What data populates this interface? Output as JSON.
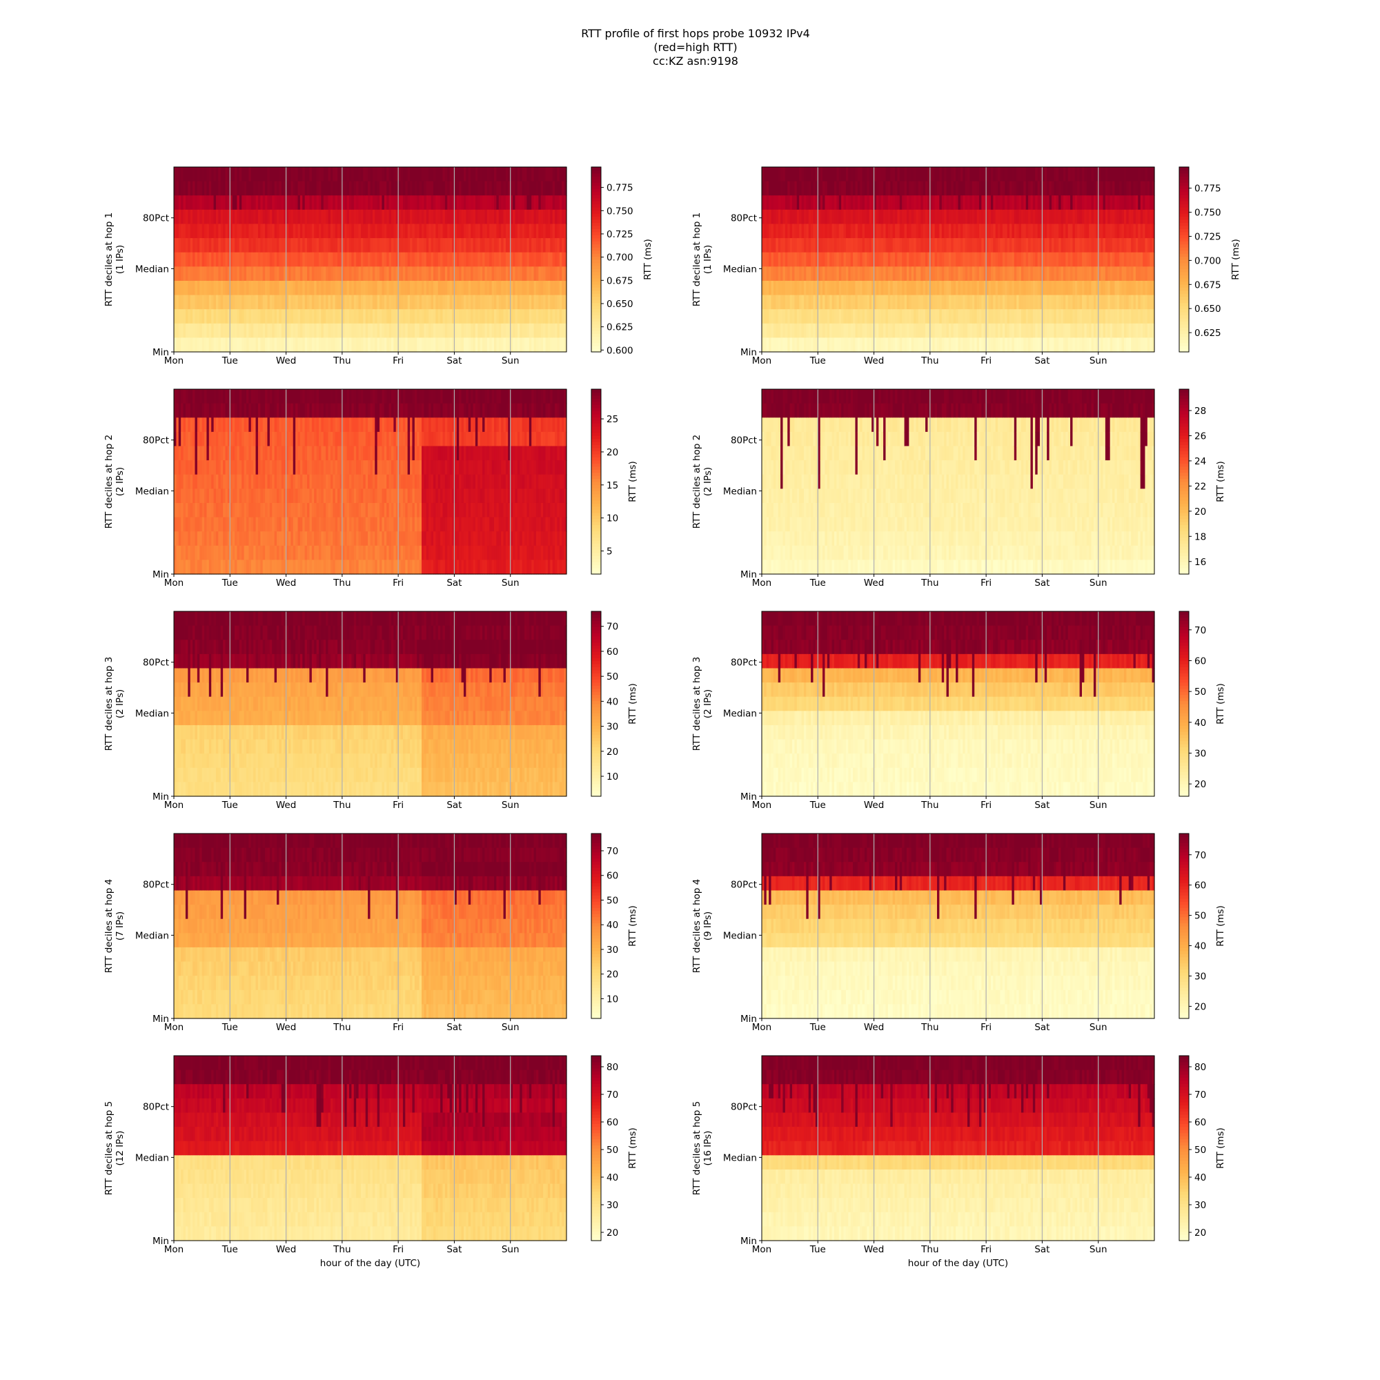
{
  "figure": {
    "title_lines": [
      "RTT profile of first hops probe 10932 IPv4",
      "(red=high RTT)",
      "cc:KZ asn:9198"
    ]
  },
  "colormap": {
    "name": "YlOrRd",
    "stops": [
      "#ffffcc",
      "#ffeda0",
      "#fed976",
      "#feb24c",
      "#fd8d3c",
      "#fc4e2a",
      "#e31a1c",
      "#bd0026",
      "#800026"
    ]
  },
  "x_ticks": [
    "Mon",
    "Tue",
    "Wed",
    "Thu",
    "Fri",
    "Sat",
    "Sun"
  ],
  "y_ticks": [
    "80Pct",
    "Median",
    "Min"
  ],
  "x_axis_label": "hour of the day (UTC)",
  "colorbar_label": "RTT (ms)",
  "chart_data": [
    {
      "type": "heatmap",
      "column": "left",
      "row": 1,
      "ylabel": "RTT deciles at hop 1",
      "ylabel_sub": "(1 IPs)",
      "color_ticks": [
        "0.600",
        "0.625",
        "0.650",
        "0.675",
        "0.700",
        "0.725",
        "0.750",
        "0.775"
      ],
      "range": [
        0.598,
        0.797
      ],
      "rows": [
        0.797,
        0.795,
        0.775,
        0.755,
        0.745,
        0.735,
        0.72,
        0.705,
        0.675,
        0.66,
        0.645,
        0.628,
        0.612
      ],
      "shift_day": null,
      "shift_delta": 0,
      "spikes": 0.3,
      "spike_depth": 1
    },
    {
      "type": "heatmap",
      "column": "right",
      "row": 1,
      "ylabel": "RTT deciles at hop 1",
      "ylabel_sub": "(1 IPs)",
      "color_ticks": [
        "0.625",
        "0.650",
        "0.675",
        "0.700",
        "0.725",
        "0.750",
        "0.775"
      ],
      "range": [
        0.605,
        0.797
      ],
      "rows": [
        0.797,
        0.795,
        0.775,
        0.755,
        0.745,
        0.735,
        0.72,
        0.705,
        0.675,
        0.66,
        0.645,
        0.632,
        0.615
      ],
      "shift_day": null,
      "shift_delta": 0,
      "spikes": 0.25,
      "spike_depth": 1
    },
    {
      "type": "heatmap",
      "column": "left",
      "row": 2,
      "ylabel": "RTT deciles at hop 2",
      "ylabel_sub": "(2 IPs)",
      "color_ticks": [
        "5",
        "10",
        "15",
        "20",
        "25"
      ],
      "range": [
        1.5,
        29.5
      ],
      "rows": [
        29.5,
        29.0,
        18.5,
        18.2,
        18.0,
        17.8,
        17.6,
        17.4,
        17.2,
        17.0,
        16.8,
        16.5,
        16.0
      ],
      "shift_day": 4.4,
      "shift_delta": 6.5,
      "spikes": 0.45,
      "spike_depth": 4
    },
    {
      "type": "heatmap",
      "column": "right",
      "row": 2,
      "ylabel": "RTT deciles at hop 2",
      "ylabel_sub": "(2 IPs)",
      "color_ticks": [
        "16",
        "18",
        "20",
        "22",
        "24",
        "26",
        "28"
      ],
      "range": [
        15.0,
        29.7
      ],
      "rows": [
        29.7,
        29.5,
        17.2,
        17.0,
        16.9,
        16.8,
        16.7,
        16.6,
        16.5,
        16.4,
        16.2,
        16.0,
        15.5
      ],
      "shift_day": null,
      "shift_delta": 0,
      "spikes": 0.4,
      "spike_depth": 5
    },
    {
      "type": "heatmap",
      "column": "left",
      "row": 3,
      "ylabel": "RTT deciles at hop 3",
      "ylabel_sub": "(2 IPs)",
      "color_ticks": [
        "10",
        "20",
        "30",
        "40",
        "50",
        "60",
        "70"
      ],
      "range": [
        2.0,
        76.0
      ],
      "rows": [
        76,
        75,
        74,
        72,
        35,
        33,
        32,
        31,
        22,
        21,
        20,
        19,
        18
      ],
      "shift_day": 4.4,
      "shift_delta": 9,
      "spikes": 0.45,
      "spike_depth": 4
    },
    {
      "type": "heatmap",
      "column": "right",
      "row": 3,
      "ylabel": "RTT deciles at hop 3",
      "ylabel_sub": "(2 IPs)",
      "color_ticks": [
        "20",
        "30",
        "40",
        "50",
        "60",
        "70"
      ],
      "range": [
        16.0,
        76.0
      ],
      "rows": [
        76,
        75,
        74,
        60,
        38,
        34,
        31,
        22,
        20,
        19,
        18.5,
        18,
        17.5
      ],
      "shift_day": null,
      "shift_delta": 0,
      "spikes": 0.5,
      "spike_depth": 4
    },
    {
      "type": "heatmap",
      "column": "left",
      "row": 4,
      "ylabel": "RTT deciles at hop 4",
      "ylabel_sub": "(7 IPs)",
      "color_ticks": [
        "10",
        "20",
        "30",
        "40",
        "50",
        "60",
        "70"
      ],
      "range": [
        2.0,
        77.0
      ],
      "rows": [
        77,
        76,
        75,
        72,
        36,
        35,
        34,
        33,
        24,
        23,
        22,
        21,
        20
      ],
      "shift_day": 4.4,
      "shift_delta": 8,
      "spikes": 0.45,
      "spike_depth": 4
    },
    {
      "type": "heatmap",
      "column": "right",
      "row": 4,
      "ylabel": "RTT deciles at hop 4",
      "ylabel_sub": "(9 IPs)",
      "color_ticks": [
        "20",
        "30",
        "40",
        "50",
        "60",
        "70"
      ],
      "range": [
        16.0,
        77.0
      ],
      "rows": [
        77,
        76,
        75,
        60,
        37,
        34,
        32,
        30,
        20,
        19,
        18.5,
        18,
        17.5
      ],
      "shift_day": null,
      "shift_delta": 0,
      "spikes": 0.5,
      "spike_depth": 4
    },
    {
      "type": "heatmap",
      "column": "left",
      "row": 5,
      "ylabel": "RTT deciles at hop 5",
      "ylabel_sub": "(12 IPs)",
      "color_ticks": [
        "20",
        "30",
        "40",
        "50",
        "60",
        "70",
        "80"
      ],
      "range": [
        17.0,
        84.0
      ],
      "rows": [
        84,
        83,
        75,
        73,
        71,
        70,
        68,
        31,
        30,
        29,
        28,
        27,
        26
      ],
      "shift_day": 4.4,
      "shift_delta": 7,
      "spikes": 0.4,
      "spike_depth": 3
    },
    {
      "type": "heatmap",
      "column": "right",
      "row": 5,
      "ylabel": "RTT deciles at hop 5",
      "ylabel_sub": "(16 IPs)",
      "color_ticks": [
        "20",
        "30",
        "40",
        "50",
        "60",
        "70",
        "80"
      ],
      "range": [
        17.0,
        84.0
      ],
      "rows": [
        84,
        83,
        74,
        72,
        70,
        68,
        66,
        33,
        25,
        24,
        23,
        22,
        21
      ],
      "shift_day": null,
      "shift_delta": 0,
      "spikes": 0.45,
      "spike_depth": 3
    }
  ]
}
